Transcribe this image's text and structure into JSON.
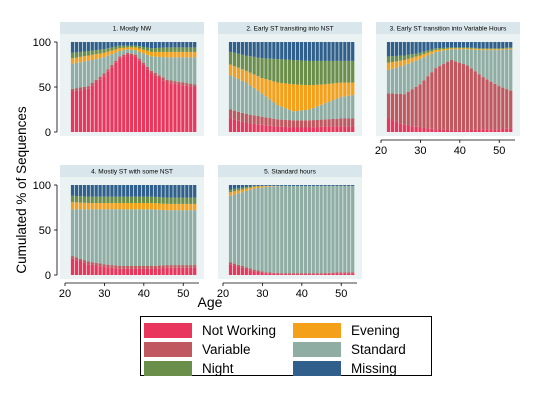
{
  "chart_data": {
    "type": "area",
    "ylabel": "Cumulated % of Sequences",
    "xlabel": "Age",
    "xlim": [
      20,
      54
    ],
    "ylim": [
      0,
      100
    ],
    "xticks": [
      "20",
      "30",
      "40",
      "50"
    ],
    "yticks": [
      "0",
      "50",
      "100"
    ],
    "categories": [
      "Not Working",
      "Evening",
      "Variable",
      "Standard",
      "Night",
      "Missing"
    ],
    "colors": {
      "Not Working": "#e8365c",
      "Evening": "#f5a01a",
      "Variable": "#c0585f",
      "Standard": "#8fada3",
      "Night": "#6b8f4a",
      "Missing": "#2f5f8a"
    },
    "stack_order": [
      "Not Working",
      "Variable",
      "Standard",
      "Evening",
      "Night",
      "Missing"
    ],
    "panels": [
      {
        "title": "1. Mostly NW",
        "ages": [
          22,
          26,
          30,
          34,
          36,
          38,
          42,
          46,
          50,
          53
        ],
        "series": {
          "Not Working": [
            45,
            48,
            62,
            82,
            86,
            84,
            65,
            55,
            52,
            50
          ],
          "Variable": [
            3,
            3,
            3,
            2,
            2,
            2,
            3,
            3,
            3,
            3
          ],
          "Standard": [
            28,
            28,
            18,
            6,
            4,
            5,
            16,
            25,
            28,
            30
          ],
          "Evening": [
            6,
            6,
            5,
            3,
            2,
            3,
            5,
            6,
            6,
            6
          ],
          "Night": [
            6,
            5,
            4,
            3,
            2,
            2,
            4,
            5,
            5,
            5
          ],
          "Missing": [
            12,
            10,
            8,
            4,
            4,
            4,
            7,
            6,
            6,
            6
          ]
        }
      },
      {
        "title": "2. Early ST transiting into NST",
        "ages": [
          22,
          26,
          30,
          34,
          38,
          42,
          46,
          50,
          53
        ],
        "series": {
          "Not Working": [
            15,
            10,
            8,
            6,
            5,
            5,
            6,
            6,
            6
          ],
          "Variable": [
            10,
            10,
            9,
            8,
            8,
            8,
            8,
            9,
            9
          ],
          "Standard": [
            38,
            35,
            26,
            16,
            10,
            12,
            18,
            24,
            26
          ],
          "Evening": [
            12,
            13,
            17,
            25,
            30,
            27,
            21,
            16,
            14
          ],
          "Night": [
            14,
            17,
            22,
            26,
            27,
            27,
            26,
            24,
            24
          ],
          "Missing": [
            11,
            15,
            18,
            19,
            20,
            21,
            21,
            21,
            21
          ]
        }
      },
      {
        "title": "3. Early ST transition into Variable Hours",
        "ages": [
          22,
          26,
          30,
          34,
          38,
          42,
          46,
          50,
          53
        ],
        "series": {
          "Not Working": [
            15,
            8,
            5,
            3,
            2,
            2,
            3,
            3,
            4
          ],
          "Variable": [
            28,
            34,
            48,
            68,
            78,
            72,
            58,
            48,
            42
          ],
          "Standard": [
            26,
            32,
            28,
            18,
            12,
            18,
            30,
            40,
            46
          ],
          "Evening": [
            8,
            6,
            4,
            2,
            1,
            1,
            1,
            1,
            1
          ],
          "Night": [
            7,
            5,
            3,
            2,
            1,
            1,
            1,
            1,
            1
          ],
          "Missing": [
            16,
            15,
            12,
            7,
            6,
            6,
            7,
            7,
            6
          ]
        }
      },
      {
        "title": "4. Mostly ST with some NST",
        "ages": [
          22,
          26,
          30,
          34,
          38,
          42,
          46,
          50,
          53
        ],
        "series": {
          "Not Working": [
            18,
            12,
            9,
            7,
            7,
            7,
            8,
            8,
            8
          ],
          "Variable": [
            3,
            3,
            3,
            3,
            3,
            3,
            3,
            3,
            3
          ],
          "Standard": [
            52,
            58,
            61,
            63,
            63,
            63,
            61,
            61,
            61
          ],
          "Evening": [
            8,
            7,
            7,
            7,
            7,
            7,
            7,
            7,
            7
          ],
          "Night": [
            7,
            7,
            7,
            7,
            7,
            7,
            7,
            7,
            7
          ],
          "Missing": [
            12,
            13,
            13,
            13,
            13,
            13,
            14,
            14,
            14
          ]
        }
      },
      {
        "title": "5. Standard hours",
        "ages": [
          22,
          25,
          28,
          31,
          35,
          40,
          45,
          50,
          53
        ],
        "series": {
          "Not Working": [
            12,
            8,
            4,
            2,
            1,
            1,
            1,
            2,
            2
          ],
          "Variable": [
            2,
            2,
            2,
            1,
            1,
            1,
            1,
            1,
            1
          ],
          "Standard": [
            74,
            82,
            90,
            95,
            97,
            97,
            97,
            96,
            96
          ],
          "Evening": [
            4,
            3,
            2,
            1,
            0,
            0,
            0,
            0,
            0
          ],
          "Night": [
            3,
            2,
            1,
            0,
            0,
            0,
            0,
            0,
            0
          ],
          "Missing": [
            5,
            3,
            1,
            1,
            1,
            1,
            1,
            1,
            1
          ]
        }
      }
    ]
  }
}
